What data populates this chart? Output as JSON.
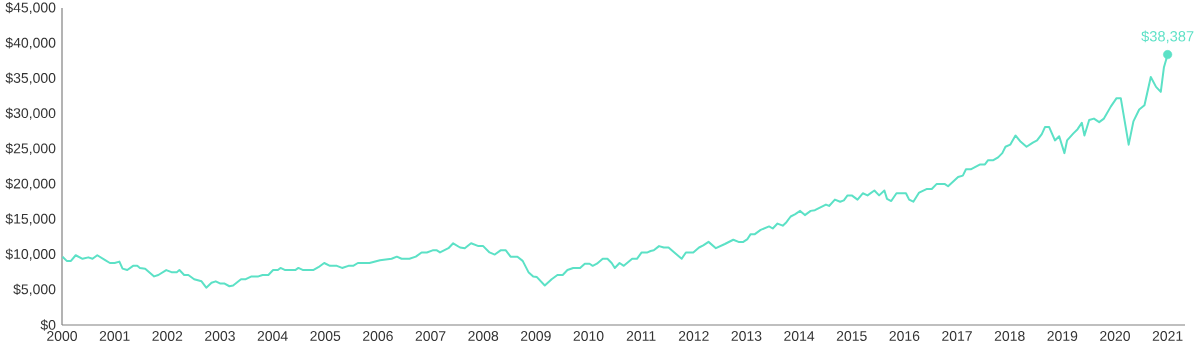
{
  "chart_data": {
    "type": "line",
    "color": "#5ce1c6",
    "marker": "none",
    "line_style": "solid",
    "xlim": [
      2000,
      2021.33
    ],
    "ylim": [
      0,
      45000
    ],
    "xticks": [
      2000,
      2001,
      2002,
      2003,
      2004,
      2005,
      2006,
      2007,
      2008,
      2009,
      2010,
      2011,
      2012,
      2013,
      2014,
      2015,
      2016,
      2017,
      2018,
      2019,
      2020,
      2021
    ],
    "yticks": [
      {
        "value": 0,
        "label": "$0"
      },
      {
        "value": 5000,
        "label": "$5,000"
      },
      {
        "value": 10000,
        "label": "$10,000"
      },
      {
        "value": 15000,
        "label": "$15,000"
      },
      {
        "value": 20000,
        "label": "$20,000"
      },
      {
        "value": 25000,
        "label": "$25,000"
      },
      {
        "value": 30000,
        "label": "$30,000"
      },
      {
        "value": 35000,
        "label": "$35,000"
      },
      {
        "value": 40000,
        "label": "$40,000"
      },
      {
        "value": 45000,
        "label": "$45,000"
      }
    ],
    "x": [
      2000.01,
      2000.09,
      2000.17,
      2000.26,
      2000.39,
      2000.5,
      2000.58,
      2000.67,
      2000.82,
      2000.91,
      2001.0,
      2001.09,
      2001.15,
      2001.24,
      2001.35,
      2001.43,
      2001.48,
      2001.58,
      2001.75,
      2001.83,
      2001.98,
      2002.08,
      2002.18,
      2002.23,
      2002.32,
      2002.4,
      2002.51,
      2002.65,
      2002.74,
      2002.84,
      2002.92,
      2003.0,
      2003.08,
      2003.18,
      2003.25,
      2003.4,
      2003.49,
      2003.6,
      2003.73,
      2003.81,
      2003.92,
      2004.01,
      2004.1,
      2004.15,
      2004.24,
      2004.43,
      2004.49,
      2004.58,
      2004.77,
      2004.87,
      2004.98,
      2005.09,
      2005.22,
      2005.32,
      2005.44,
      2005.53,
      2005.62,
      2005.84,
      2006.04,
      2006.26,
      2006.36,
      2006.45,
      2006.6,
      2006.72,
      2006.83,
      2006.93,
      2007.04,
      2007.12,
      2007.18,
      2007.34,
      2007.43,
      2007.56,
      2007.65,
      2007.77,
      2007.91,
      2008.0,
      2008.12,
      2008.22,
      2008.33,
      2008.43,
      2008.52,
      2008.65,
      2008.75,
      2008.86,
      2008.95,
      2009.02,
      2009.17,
      2009.3,
      2009.41,
      2009.51,
      2009.6,
      2009.71,
      2009.84,
      2009.93,
      2010.02,
      2010.08,
      2010.16,
      2010.27,
      2010.36,
      2010.44,
      2010.5,
      2010.59,
      2010.67,
      2010.83,
      2010.92,
      2011.01,
      2011.12,
      2011.18,
      2011.24,
      2011.34,
      2011.43,
      2011.52,
      2011.77,
      2011.85,
      2011.99,
      2012.1,
      2012.18,
      2012.28,
      2012.42,
      2012.59,
      2012.75,
      2012.85,
      2012.94,
      2013.02,
      2013.08,
      2013.16,
      2013.27,
      2013.43,
      2013.5,
      2013.59,
      2013.69,
      2013.76,
      2013.84,
      2013.92,
      2014.02,
      2014.11,
      2014.22,
      2014.3,
      2014.51,
      2014.57,
      2014.68,
      2014.78,
      2014.85,
      2014.92,
      2015.0,
      2015.11,
      2015.21,
      2015.3,
      2015.43,
      2015.52,
      2015.62,
      2015.67,
      2015.75,
      2015.85,
      2016.03,
      2016.09,
      2016.17,
      2016.28,
      2016.42,
      2016.52,
      2016.61,
      2016.77,
      2016.83,
      2017.02,
      2017.11,
      2017.17,
      2017.26,
      2017.44,
      2017.53,
      2017.59,
      2017.69,
      2017.78,
      2017.86,
      2017.92,
      2018.01,
      2018.11,
      2018.21,
      2018.32,
      2018.44,
      2018.52,
      2018.61,
      2018.67,
      2018.75,
      2018.86,
      2018.94,
      2019.04,
      2019.09,
      2019.21,
      2019.29,
      2019.37,
      2019.42,
      2019.51,
      2019.6,
      2019.7,
      2019.79,
      2019.92,
      2020.03,
      2020.11,
      2020.26,
      2020.35,
      2020.46,
      2020.56,
      2020.68,
      2020.78,
      2020.87,
      2020.93,
      2021.0
    ],
    "values": [
      9700,
      9100,
      9100,
      9900,
      9400,
      9600,
      9400,
      9900,
      9200,
      8800,
      8800,
      9000,
      8000,
      7800,
      8400,
      8400,
      8100,
      8000,
      6900,
      7100,
      7800,
      7500,
      7500,
      7800,
      7100,
      7100,
      6500,
      6200,
      5300,
      6000,
      6200,
      5900,
      5900,
      5500,
      5600,
      6500,
      6500,
      6900,
      6900,
      7100,
      7100,
      7800,
      7800,
      8100,
      7800,
      7800,
      8100,
      7800,
      7800,
      8200,
      8800,
      8400,
      8400,
      8100,
      8400,
      8400,
      8800,
      8800,
      9200,
      9400,
      9700,
      9400,
      9400,
      9700,
      10300,
      10300,
      10600,
      10600,
      10300,
      10900,
      11600,
      11000,
      10900,
      11600,
      11200,
      11200,
      10300,
      10000,
      10600,
      10600,
      9700,
      9700,
      9100,
      7500,
      6900,
      6800,
      5600,
      6500,
      7100,
      7100,
      7800,
      8100,
      8100,
      8700,
      8700,
      8400,
      8700,
      9400,
      9400,
      8800,
      8100,
      8800,
      8400,
      9400,
      9400,
      10300,
      10300,
      10500,
      10600,
      11200,
      11000,
      11000,
      9400,
      10300,
      10300,
      11000,
      11300,
      11800,
      10900,
      11500,
      12100,
      11800,
      11800,
      12200,
      12900,
      12900,
      13500,
      14000,
      13700,
      14400,
      14100,
      14600,
      15400,
      15700,
      16200,
      15600,
      16200,
      16300,
      17100,
      16900,
      17800,
      17500,
      17700,
      18400,
      18400,
      17800,
      18700,
      18400,
      19100,
      18400,
      19100,
      17900,
      17600,
      18700,
      18700,
      17800,
      17500,
      18800,
      19300,
      19300,
      20000,
      20000,
      19700,
      21000,
      21200,
      22100,
      22100,
      22800,
      22800,
      23400,
      23400,
      23800,
      24400,
      25300,
      25600,
      26900,
      26000,
      25300,
      25900,
      26200,
      27100,
      28100,
      28100,
      26200,
      26800,
      24400,
      26200,
      27200,
      27800,
      28700,
      26900,
      29100,
      29300,
      28800,
      29300,
      31000,
      32200,
      32200,
      25600,
      28900,
      30600,
      31200,
      35200,
      33800,
      33100,
      36600,
      38387
    ],
    "annotations": [
      {
        "text": "$38,387",
        "x": 2021.0,
        "y": 38387
      }
    ]
  }
}
